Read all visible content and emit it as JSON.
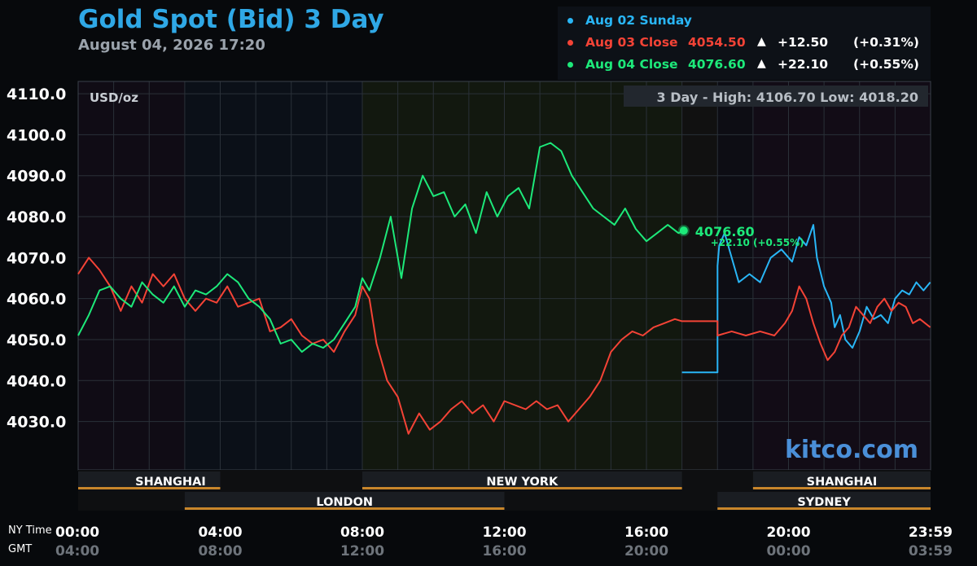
{
  "title": "Gold Spot (Bid) 3 Day",
  "subtitle": "August 04, 2026 17:20",
  "legend": [
    {
      "label": "Aug 02 Sunday",
      "value": "",
      "arrow": "",
      "change": "",
      "pct": "",
      "color": "#29b6f6"
    },
    {
      "label": "Aug 03 Close",
      "value": "4054.50",
      "arrow": "▲",
      "change": "+12.50",
      "pct": "(+0.31%)",
      "color": "#f44336"
    },
    {
      "label": "Aug 04 Close",
      "value": "4076.60",
      "arrow": "▲",
      "change": "+22.10",
      "pct": "(+0.55%)",
      "color": "#1de97a"
    }
  ],
  "chart_data": {
    "type": "line",
    "unit_label": "USD/oz",
    "range_label": "3 Day - High: 4106.70  Low: 4018.20",
    "watermark": "kitco.com",
    "current_label": "4076.60",
    "current_change_label": "+22.10 (+0.55%)",
    "ylim": [
      4018.2,
      4113
    ],
    "y_ticks": [
      "4110.0",
      "4100.0",
      "4090.0",
      "4080.0",
      "4070.0",
      "4060.0",
      "4050.0",
      "4040.0",
      "4030.0"
    ],
    "xlim_hours": [
      0,
      24
    ],
    "x_ticks_ny": [
      "00:00",
      "04:00",
      "08:00",
      "12:00",
      "16:00",
      "20:00",
      "23:59"
    ],
    "x_ticks_gmt": [
      "04:00",
      "08:00",
      "12:00",
      "16:00",
      "20:00",
      "00:00",
      "03:59"
    ],
    "x_axis_labels": {
      "ny": "NY Time",
      "gmt": "GMT"
    },
    "sessions": [
      {
        "name": "SHANGHAI",
        "row": 1,
        "from": 0,
        "to": 4,
        "label_at": 2.6
      },
      {
        "name": "NEW YORK",
        "row": 1,
        "from": 8,
        "to": 17,
        "label_at": 12.5
      },
      {
        "name": "SHANGHAI",
        "row": 1,
        "from": 19,
        "to": 24,
        "label_at": 21.5
      },
      {
        "name": "LONDON",
        "row": 2,
        "from": 3,
        "to": 12,
        "label_at": 7.5
      },
      {
        "name": "SYDNEY",
        "row": 2,
        "from": 18,
        "to": 24,
        "label_at": 21
      }
    ],
    "series": [
      {
        "name": "Aug 02 Sunday",
        "color": "#29b6f6",
        "x": [
          17.0,
          18.0,
          18.0,
          18.05,
          18.2,
          18.4,
          18.6,
          18.9,
          19.2,
          19.5,
          19.8,
          20.1,
          20.3,
          20.5,
          20.7,
          20.8,
          21.0,
          21.2,
          21.3,
          21.45,
          21.6,
          21.8,
          22.0,
          22.2,
          22.4,
          22.6,
          22.8,
          23.0,
          23.2,
          23.4,
          23.6,
          23.8,
          23.99
        ],
        "y": [
          4042,
          4042,
          4068,
          4073,
          4076,
          4070,
          4064,
          4066,
          4064,
          4070,
          4072,
          4069,
          4075,
          4073,
          4078,
          4070,
          4063,
          4059,
          4053,
          4056,
          4050,
          4048,
          4052,
          4058,
          4055,
          4056,
          4054,
          4060,
          4062,
          4061,
          4064,
          4062,
          4064
        ]
      },
      {
        "name": "Aug 03 Close",
        "color": "#f44336",
        "x": [
          0.0,
          0.3,
          0.6,
          0.9,
          1.2,
          1.5,
          1.8,
          2.1,
          2.4,
          2.7,
          3.0,
          3.3,
          3.6,
          3.9,
          4.2,
          4.5,
          4.8,
          5.1,
          5.4,
          5.7,
          6.0,
          6.3,
          6.6,
          6.9,
          7.2,
          7.5,
          7.8,
          8.0,
          8.2,
          8.4,
          8.7,
          9.0,
          9.3,
          9.6,
          9.9,
          10.2,
          10.5,
          10.8,
          11.1,
          11.4,
          11.7,
          12.0,
          12.3,
          12.6,
          12.9,
          13.2,
          13.5,
          13.8,
          14.1,
          14.4,
          14.7,
          15.0,
          15.3,
          15.6,
          15.9,
          16.2,
          16.5,
          16.8,
          17.0,
          18.0,
          18.0,
          18.4,
          18.8,
          19.2,
          19.6,
          19.9,
          20.1,
          20.3,
          20.5,
          20.7,
          20.9,
          21.1,
          21.3,
          21.5,
          21.7,
          21.9,
          22.1,
          22.3,
          22.5,
          22.7,
          22.9,
          23.1,
          23.3,
          23.5,
          23.7,
          23.99
        ],
        "y": [
          4066,
          4070,
          4067,
          4063,
          4057,
          4063,
          4059,
          4066,
          4063,
          4066,
          4060,
          4057,
          4060,
          4059,
          4063,
          4058,
          4059,
          4060,
          4052,
          4053,
          4055,
          4051,
          4049,
          4050,
          4047,
          4052,
          4056,
          4063,
          4060,
          4049,
          4040,
          4036,
          4027,
          4032,
          4028,
          4030,
          4033,
          4035,
          4032,
          4034,
          4030,
          4035,
          4034,
          4033,
          4035,
          4033,
          4034,
          4030,
          4033,
          4036,
          4040,
          4047,
          4050,
          4052,
          4051,
          4053,
          4054,
          4055,
          4054.5,
          4054.5,
          4051,
          4052,
          4051,
          4052,
          4051,
          4054,
          4057,
          4063,
          4060,
          4054,
          4049,
          4045,
          4047,
          4051,
          4053,
          4058,
          4056,
          4054,
          4058,
          4060,
          4057,
          4059,
          4058,
          4054,
          4055,
          4053
        ]
      },
      {
        "name": "Aug 04 Close",
        "color": "#1de97a",
        "x": [
          0.0,
          0.3,
          0.6,
          0.9,
          1.2,
          1.5,
          1.8,
          2.1,
          2.4,
          2.7,
          3.0,
          3.3,
          3.6,
          3.9,
          4.2,
          4.5,
          4.8,
          5.1,
          5.4,
          5.7,
          6.0,
          6.3,
          6.6,
          6.9,
          7.2,
          7.5,
          7.8,
          8.0,
          8.2,
          8.5,
          8.8,
          9.1,
          9.4,
          9.7,
          10.0,
          10.3,
          10.6,
          10.9,
          11.2,
          11.5,
          11.8,
          12.1,
          12.4,
          12.7,
          13.0,
          13.3,
          13.6,
          13.9,
          14.2,
          14.5,
          14.8,
          15.1,
          15.4,
          15.7,
          16.0,
          16.3,
          16.6,
          16.9,
          17.05
        ],
        "y": [
          4051,
          4056,
          4062,
          4063,
          4060,
          4058,
          4064,
          4061,
          4059,
          4063,
          4058,
          4062,
          4061,
          4063,
          4066,
          4064,
          4060,
          4058,
          4055,
          4049,
          4050,
          4047,
          4049,
          4048,
          4050,
          4054,
          4058,
          4065,
          4062,
          4070,
          4080,
          4065,
          4082,
          4090,
          4085,
          4086,
          4080,
          4083,
          4076,
          4086,
          4080,
          4085,
          4087,
          4082,
          4097,
          4098,
          4096,
          4090,
          4086,
          4082,
          4080,
          4078,
          4082,
          4077,
          4074,
          4076,
          4078,
          4076,
          4076.6
        ]
      }
    ]
  }
}
